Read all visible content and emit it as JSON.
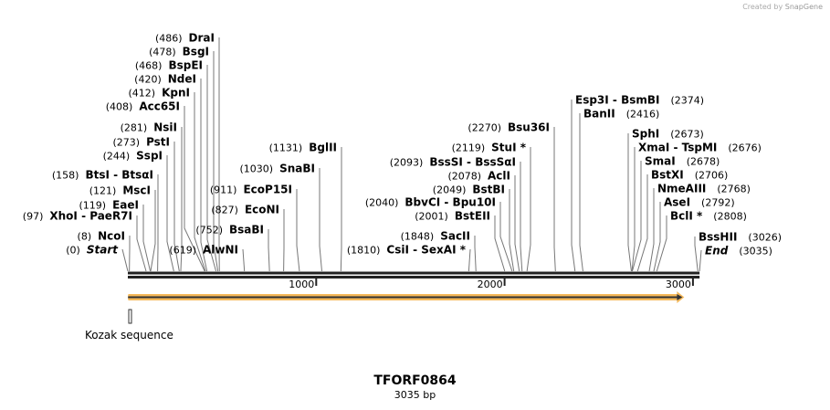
{
  "credit": {
    "prefix": "Created by",
    "brand": "SnapGene"
  },
  "title": "TFORF0864",
  "length_label": "3035 bp",
  "sequence_length": 3035,
  "ticks": [
    "1000",
    "2000",
    "3000"
  ],
  "feature": {
    "name": "Kozak sequence",
    "color": "#f5b95a",
    "start": 1,
    "end": 2915
  },
  "sites": [
    {
      "pos": "(486)",
      "name": "DraI",
      "bp": 486
    },
    {
      "pos": "(478)",
      "name": "BsgI",
      "bp": 478
    },
    {
      "pos": "(468)",
      "name": "BspEI",
      "bp": 468
    },
    {
      "pos": "(420)",
      "name": "NdeI",
      "bp": 420
    },
    {
      "pos": "(412)",
      "name": "KpnI",
      "bp": 412
    },
    {
      "pos": "(408)",
      "name": "Acc65I",
      "bp": 408
    },
    {
      "pos": "(281)",
      "name": "NsiI",
      "bp": 281
    },
    {
      "pos": "(273)",
      "name": "PstI",
      "bp": 273
    },
    {
      "pos": "(244)",
      "name": "SspI",
      "bp": 244
    },
    {
      "pos": "(158)",
      "name": "BtsI  - BtsαI",
      "bp": 158
    },
    {
      "pos": "(121)",
      "name": "MscI",
      "bp": 121
    },
    {
      "pos": "(119)",
      "name": "EaeI",
      "bp": 119
    },
    {
      "pos": "(97)",
      "name": "XhoI  - PaeR7I",
      "bp": 97
    },
    {
      "pos": "(8)",
      "name": "NcoI",
      "bp": 8
    },
    {
      "pos": "(0)",
      "name": "Start",
      "bp": 0,
      "italic": true
    },
    {
      "pos": "(911)",
      "name": "EcoP15I",
      "bp": 911
    },
    {
      "pos": "(827)",
      "name": "EcoNI",
      "bp": 827
    },
    {
      "pos": "(752)",
      "name": "BsaBI",
      "bp": 752
    },
    {
      "pos": "(619)",
      "name": "AlwNI",
      "bp": 619
    },
    {
      "pos": "(1131)",
      "name": "BglII",
      "bp": 1131
    },
    {
      "pos": "(1030)",
      "name": "SnaBI",
      "bp": 1030
    },
    {
      "pos": "(2270)",
      "name": "Bsu36I",
      "bp": 2270
    },
    {
      "pos": "(2119)",
      "name": "StuI *",
      "bp": 2119
    },
    {
      "pos": "(2093)",
      "name": "BssSI  - BssSαI",
      "bp": 2093
    },
    {
      "pos": "(2078)",
      "name": "AclI",
      "bp": 2078
    },
    {
      "pos": "(2049)",
      "name": "BstBI",
      "bp": 2049
    },
    {
      "pos": "(2040)",
      "name": "BbvCI  - Bpu10I",
      "bp": 2040
    },
    {
      "pos": "(2001)",
      "name": "BstEII",
      "bp": 2001
    },
    {
      "pos": "(1848)",
      "name": "SacII",
      "bp": 1848
    },
    {
      "pos": "(1810)",
      "name": "CsiI  - SexAI *",
      "bp": 1810
    },
    {
      "pos": "(2374)",
      "name": "Esp3I  - BsmBI",
      "bp": 2374
    },
    {
      "pos": "(2416)",
      "name": "BanII",
      "bp": 2416
    },
    {
      "pos": "(2673)",
      "name": "SphI",
      "bp": 2673
    },
    {
      "pos": "(2676)",
      "name": "XmaI  - TspMI",
      "bp": 2676
    },
    {
      "pos": "(2678)",
      "name": "SmaI",
      "bp": 2678
    },
    {
      "pos": "(2706)",
      "name": "BstXI",
      "bp": 2706
    },
    {
      "pos": "(2768)",
      "name": "NmeAIII",
      "bp": 2768
    },
    {
      "pos": "(2792)",
      "name": "AseI",
      "bp": 2792
    },
    {
      "pos": "(2808)",
      "name": "BclI *",
      "bp": 2808
    },
    {
      "pos": "(3026)",
      "name": "BssHII",
      "bp": 3026
    },
    {
      "pos": "(3035)",
      "name": "End",
      "bp": 3035,
      "italic": true
    }
  ]
}
